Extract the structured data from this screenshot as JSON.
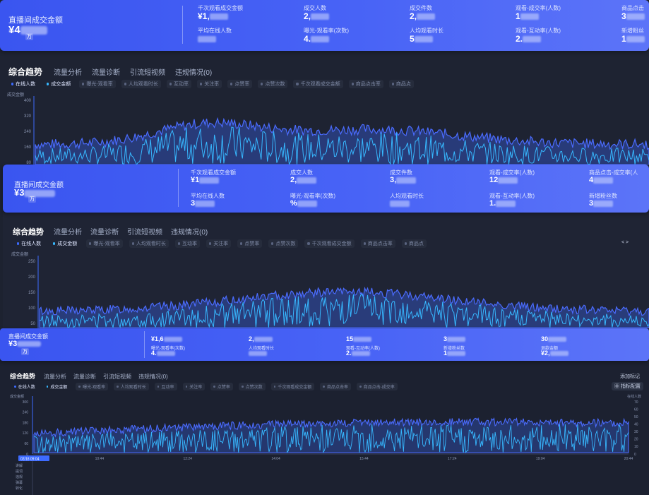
{
  "layer1": {
    "stats": {
      "main_label": "直播间成交金额",
      "main_value_prefix": "¥4",
      "main_unit": "万",
      "metrics": [
        {
          "label": "千次观看成交金额",
          "value": "¥1,"
        },
        {
          "label": "成交人数",
          "value": "2,"
        },
        {
          "label": "成交件数",
          "value": "2,"
        },
        {
          "label": "观看-成交率(人数)",
          "value": "1"
        },
        {
          "label": "商品点击",
          "value": "3"
        },
        {
          "label": "平均在线人数",
          "value": ""
        },
        {
          "label": "曝光-观看率(次数)",
          "value": "4."
        },
        {
          "label": "人均观看时长",
          "value": "5"
        },
        {
          "label": "观看-互动率(人数)",
          "value": "2."
        },
        {
          "label": "新增粉丝",
          "value": "1"
        }
      ]
    },
    "tabs": [
      "综合趋势",
      "流量分析",
      "流量诊断",
      "引流短视频",
      "违规情况(0)"
    ],
    "legend": [
      "在线人数",
      "成交金额",
      "曝光-观看率",
      "人均观看时长",
      "互动率",
      "关注率",
      "点赞率",
      "点赞次数",
      "千次观看成交金额",
      "商品点击率",
      "商品点"
    ],
    "axis": {
      "title": "成交金额",
      "ticks": [
        "400",
        "320",
        "240",
        "160",
        "80"
      ]
    }
  },
  "layer2": {
    "stats": {
      "main_label": "直播间成交金额",
      "main_value_prefix": "¥3",
      "main_unit": "万",
      "metrics": [
        {
          "label": "千次观看成交金额",
          "value": "¥1"
        },
        {
          "label": "成交人数",
          "value": "2,"
        },
        {
          "label": "成交件数",
          "value": "3,"
        },
        {
          "label": "观看-成交率(人数)",
          "value": "12"
        },
        {
          "label": "商品点击-成交率(人",
          "value": "4"
        },
        {
          "label": "平均在线人数",
          "value": "3"
        },
        {
          "label": "曝光-观看率(次数)",
          "value": "%"
        },
        {
          "label": "人均观看时长",
          "value": ""
        },
        {
          "label": "观看-互动率(人数)",
          "value": "1."
        },
        {
          "label": "新增粉丝数",
          "value": "3"
        }
      ]
    },
    "tabs": [
      "综合趋势",
      "流量分析",
      "流量诊断",
      "引流短视频",
      "违规情况(0)"
    ],
    "legend": [
      "在线人数",
      "成交金额",
      "曝光-观看率",
      "人均观看时长",
      "互动率",
      "关注率",
      "点赞率",
      "点赞次数",
      "千次观看成交金额",
      "商品点击率",
      "商品点"
    ],
    "axis": {
      "title": "成交金额",
      "ticks": [
        "250",
        "200",
        "150",
        "100",
        "50"
      ]
    },
    "pager": "< >"
  },
  "layer3": {
    "stats": {
      "main_label": "直播间成交金额",
      "main_value_prefix": "¥3",
      "main_unit": "万",
      "metrics": [
        {
          "label": "",
          "value": "¥1,6"
        },
        {
          "label": "",
          "value": "2,"
        },
        {
          "label": "",
          "value": "15"
        },
        {
          "label": "",
          "value": "3"
        },
        {
          "label": "",
          "value": "30"
        },
        {
          "label": "曝光-观看率(次数)",
          "value": "4."
        },
        {
          "label": "人均观看时长",
          "value": ""
        },
        {
          "label": "观看-互动率(人数)",
          "value": "2."
        },
        {
          "label": "新增粉丝数",
          "value": "1"
        },
        {
          "label": "退款金额",
          "value": "¥2,"
        }
      ]
    },
    "tabs": [
      "综合趋势",
      "流量分析",
      "流量诊断",
      "引流短视频",
      "违规情况(0)"
    ],
    "legend": [
      "在线人数",
      "成交金额",
      "曝光-观看率",
      "人均观看时长",
      "互动率",
      "关注率",
      "点赞率",
      "点赞次数",
      "千次观看成交金额",
      "商品点击率",
      "商品点击-成交率"
    ],
    "add_note": "添加标记",
    "metric_config": "指标配置",
    "axis_left": {
      "title": "成交金额",
      "ticks": [
        "300",
        "240",
        "180",
        "120",
        "60",
        "0"
      ]
    },
    "axis_right": {
      "title": "在线人数",
      "ticks": [
        "70",
        "60",
        "50",
        "40",
        "30",
        "20",
        "10",
        "0"
      ]
    },
    "x_ticks": [
      "02/18 09:04",
      "10:44",
      "12:24",
      "14:04",
      "15:44",
      "17:24",
      "19:04",
      "20:44"
    ],
    "side_labels": [
      "讲解",
      "提词",
      "违规",
      "弹幕",
      "转化"
    ]
  },
  "colors": {
    "banner": "#4863f6",
    "bg": "#1d2230",
    "series_amount": "#3d6bff",
    "series_online": "#37b8ff"
  }
}
